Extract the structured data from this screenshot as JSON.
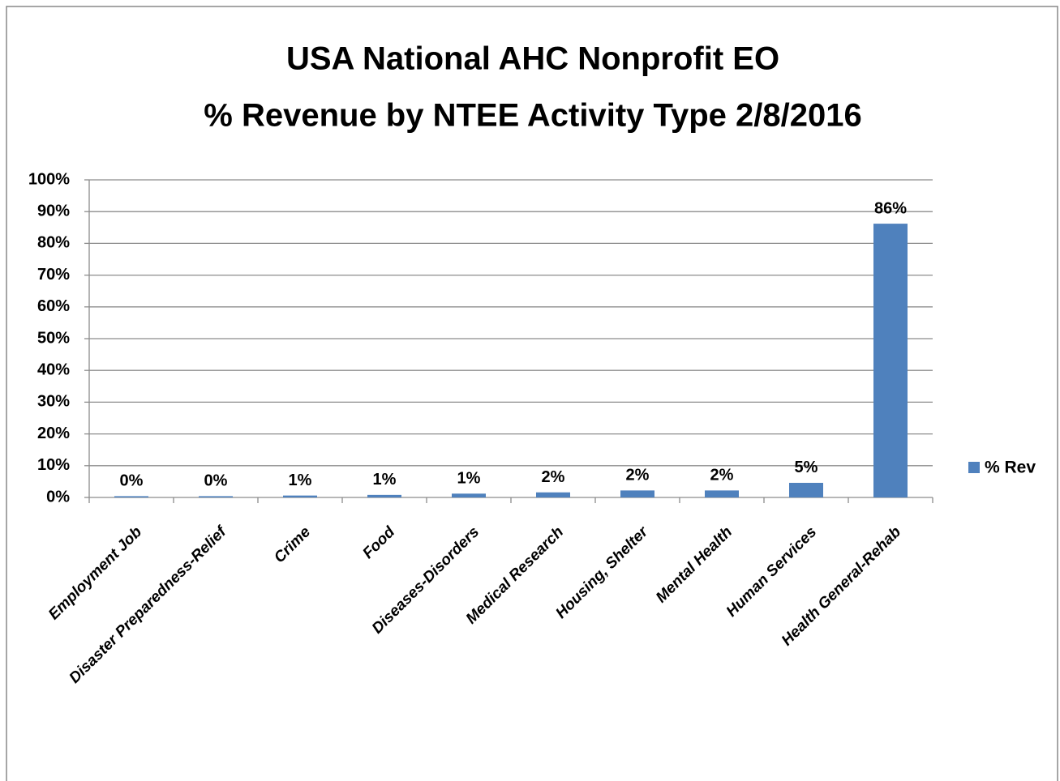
{
  "chart_data": {
    "type": "bar",
    "title": [
      "USA National AHC Nonprofit EO",
      "% Revenue by NTEE Activity Type 2/8/2016"
    ],
    "categories": [
      "Employment Job",
      "Disaster Preparedness-Relief",
      "Crime",
      "Food",
      "Diseases-Disorders",
      "Medical Research",
      "Housing, Shelter",
      "Mental Health",
      "Human Services",
      "Health General-Rehab"
    ],
    "series": [
      {
        "name": "% Rev",
        "color": "#4f81bd",
        "values": [
          0.4,
          0.4,
          0.6,
          0.8,
          1.2,
          1.6,
          2.2,
          2.2,
          4.6,
          86.2
        ],
        "value_labels": [
          "0%",
          "0%",
          "1%",
          "1%",
          "1%",
          "2%",
          "2%",
          "2%",
          "5%",
          "86%"
        ]
      }
    ],
    "ylim": [
      0,
      100
    ],
    "yticks": [
      {
        "value": 0,
        "label": "0%"
      },
      {
        "value": 10,
        "label": "10%"
      },
      {
        "value": 20,
        "label": "20%"
      },
      {
        "value": 30,
        "label": "30%"
      },
      {
        "value": 40,
        "label": "40%"
      },
      {
        "value": 50,
        "label": "50%"
      },
      {
        "value": 60,
        "label": "60%"
      },
      {
        "value": 70,
        "label": "70%"
      },
      {
        "value": 80,
        "label": "80%"
      },
      {
        "value": 90,
        "label": "90%"
      },
      {
        "value": 100,
        "label": "100%"
      }
    ],
    "grid": true,
    "legend": "right"
  }
}
